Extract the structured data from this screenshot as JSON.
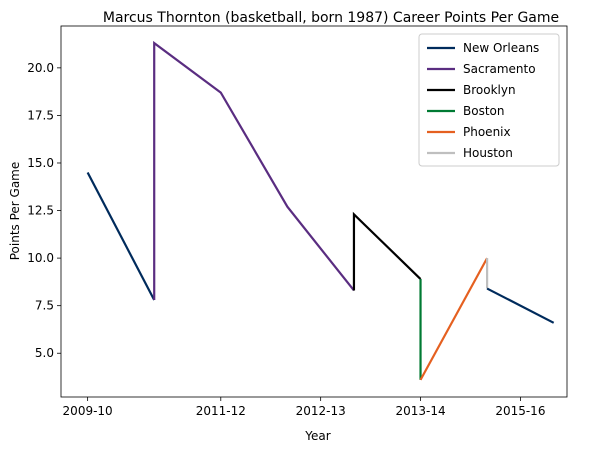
{
  "chart_data": {
    "type": "line",
    "title": "Marcus Thornton (basketball, born 1987) Career Points Per Game",
    "xlabel": "Year",
    "ylabel": "Points Per Game",
    "x_ticks": [
      {
        "x": 0,
        "label": "2009-10"
      },
      {
        "x": 2,
        "label": "2011-12"
      },
      {
        "x": 3.5,
        "label": "2012-13"
      },
      {
        "x": 5,
        "label": "2013-14"
      },
      {
        "x": 6.5,
        "label": "2015-16"
      }
    ],
    "y_ticks": [
      5.0,
      7.5,
      10.0,
      12.5,
      15.0,
      17.5,
      20.0
    ],
    "y_tick_labels": [
      "5.0",
      "7.5",
      "10.0",
      "12.5",
      "15.0",
      "17.5",
      "20.0"
    ],
    "xlim": [
      -0.4,
      7.2
    ],
    "ylim": [
      2.7,
      22.2
    ],
    "grid": false,
    "legend_position": "top-right",
    "series": [
      {
        "name": "New Orleans",
        "color": "#002b5c",
        "points": [
          [
            0,
            14.5
          ],
          [
            1,
            7.8
          ]
        ]
      },
      {
        "name": "Sacramento",
        "color": "#5a2d81",
        "points": [
          [
            1,
            7.8
          ],
          [
            1,
            21.3
          ],
          [
            2,
            18.7
          ],
          [
            3,
            12.7
          ],
          [
            4,
            8.3
          ]
        ]
      },
      {
        "name": "Brooklyn",
        "color": "#000000",
        "points": [
          [
            4,
            8.3
          ],
          [
            4,
            12.3
          ],
          [
            5,
            8.9
          ]
        ]
      },
      {
        "name": "Boston",
        "color": "#007a33",
        "points": [
          [
            5,
            8.9
          ],
          [
            5,
            3.6
          ]
        ]
      },
      {
        "name": "Phoenix",
        "color": "#e56020",
        "points": [
          [
            5,
            3.6
          ],
          [
            6,
            10.0
          ]
        ]
      },
      {
        "name": "Houston",
        "color": "#bfbfbf",
        "points": [
          [
            6,
            10.0
          ],
          [
            6,
            8.4
          ]
        ]
      },
      {
        "name": "",
        "color": "#002b5c",
        "points": [
          [
            6,
            8.4
          ],
          [
            7,
            6.6
          ]
        ]
      }
    ]
  }
}
